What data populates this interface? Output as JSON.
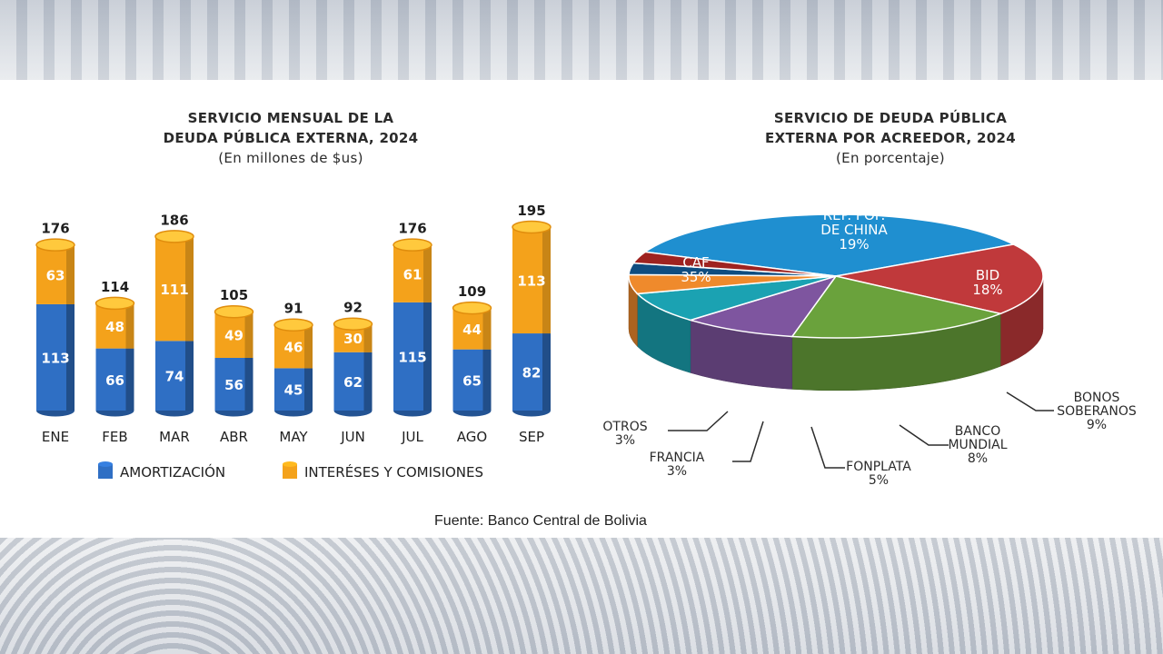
{
  "source": "Fuente: Banco Central de Bolivia",
  "colors": {
    "amortizacion": "#2f6fc4",
    "intereses": "#f4a21b",
    "caf": "#1f8fd0",
    "china": "#c0393b",
    "bid": "#6aa23c",
    "bonos": "#7e559f",
    "banco_mundial": "#1ba2b2",
    "fonplata": "#ef8a2c",
    "francia": "#0f4d80",
    "otros": "#9e2320"
  },
  "chart_data": [
    {
      "type": "bar",
      "stacked": true,
      "title": "SERVICIO MENSUAL DE LA",
      "title2": "DEUDA PÚBLICA EXTERNA, 2024",
      "subtitle": "(En millones de $us)",
      "categories": [
        "ENE",
        "FEB",
        "MAR",
        "ABR",
        "MAY",
        "JUN",
        "JUL",
        "AGO",
        "SEP"
      ],
      "series": [
        {
          "name": "AMORTIZACIÓN",
          "values": [
            113,
            66,
            74,
            56,
            45,
            62,
            115,
            65,
            82
          ]
        },
        {
          "name": "INTERÉSES Y COMISIONES",
          "values": [
            63,
            48,
            111,
            49,
            46,
            30,
            61,
            44,
            113
          ]
        }
      ],
      "totals": [
        176,
        114,
        186,
        105,
        91,
        92,
        176,
        109,
        195
      ],
      "legend": "bottom",
      "grid": false
    },
    {
      "type": "pie",
      "title": "SERVICIO DE DEUDA PÚBLICA",
      "title2": "EXTERNA POR ACREEDOR, 2024",
      "subtitle": "(En porcentaje)",
      "slices": [
        {
          "label": "CAF",
          "value": 35,
          "value_label": "35%"
        },
        {
          "label": "REP. POP. DE CHINA",
          "label_lines": [
            "REP. POP.",
            "DE CHINA"
          ],
          "value": 19,
          "value_label": "19%"
        },
        {
          "label": "BID",
          "value": 18,
          "value_label": "18%"
        },
        {
          "label": "BONOS SOBERANOS",
          "label_lines": [
            "BONOS",
            "SOBERANOS"
          ],
          "value": 9,
          "value_label": "9%"
        },
        {
          "label": "BANCO MUNDIAL",
          "label_lines": [
            "BANCO",
            "MUNDIAL"
          ],
          "value": 8,
          "value_label": "8%"
        },
        {
          "label": "FONPLATA",
          "value": 5,
          "value_label": "5%"
        },
        {
          "label": "FRANCIA",
          "value": 3,
          "value_label": "3%"
        },
        {
          "label": "OTROS",
          "value": 3,
          "value_label": "3%"
        }
      ]
    }
  ]
}
